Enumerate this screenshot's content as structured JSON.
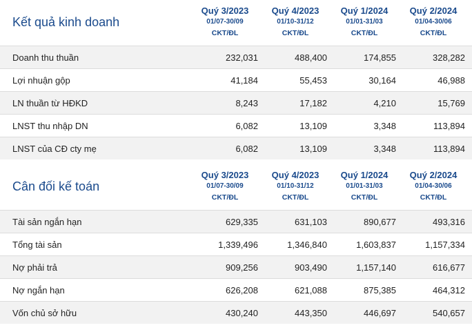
{
  "business_results": {
    "title": "Kết quả kinh doanh",
    "columns": [
      {
        "quarter": "Quý 3/2023",
        "dates": "01/07-30/09",
        "audit": "CKT/ĐL"
      },
      {
        "quarter": "Quý 4/2023",
        "dates": "01/10-31/12",
        "audit": "CKT/ĐL"
      },
      {
        "quarter": "Quý 1/2024",
        "dates": "01/01-31/03",
        "audit": "CKT/ĐL"
      },
      {
        "quarter": "Quý 2/2024",
        "dates": "01/04-30/06",
        "audit": "CKT/ĐL"
      }
    ],
    "rows": [
      {
        "label": "Doanh thu thuần",
        "values": [
          "232,031",
          "488,400",
          "174,855",
          "328,282"
        ]
      },
      {
        "label": "Lợi nhuận gộp",
        "values": [
          "41,184",
          "55,453",
          "30,164",
          "46,988"
        ]
      },
      {
        "label": "LN thuần từ HĐKD",
        "values": [
          "8,243",
          "17,182",
          "4,210",
          "15,769"
        ]
      },
      {
        "label": "LNST thu nhập DN",
        "values": [
          "6,082",
          "13,109",
          "3,348",
          "113,894"
        ]
      },
      {
        "label": "LNST của CĐ cty mẹ",
        "values": [
          "6,082",
          "13,109",
          "3,348",
          "113,894"
        ]
      }
    ]
  },
  "balance_sheet": {
    "title": "Cân đối kế toán",
    "columns": [
      {
        "quarter": "Quý 3/2023",
        "dates": "01/07-30/09",
        "audit": "CKT/ĐL"
      },
      {
        "quarter": "Quý 4/2023",
        "dates": "01/10-31/12",
        "audit": "CKT/ĐL"
      },
      {
        "quarter": "Quý 1/2024",
        "dates": "01/01-31/03",
        "audit": "CKT/ĐL"
      },
      {
        "quarter": "Quý 2/2024",
        "dates": "01/04-30/06",
        "audit": "CKT/ĐL"
      }
    ],
    "rows": [
      {
        "label": "Tài sản ngắn hạn",
        "values": [
          "629,335",
          "631,103",
          "890,677",
          "493,316"
        ]
      },
      {
        "label": "Tổng tài sản",
        "values": [
          "1,339,496",
          "1,346,840",
          "1,603,837",
          "1,157,334"
        ]
      },
      {
        "label": "Nợ phải trả",
        "values": [
          "909,256",
          "903,490",
          "1,157,140",
          "616,677"
        ]
      },
      {
        "label": "Nợ ngắn hạn",
        "values": [
          "626,208",
          "621,088",
          "875,385",
          "464,312"
        ]
      },
      {
        "label": "Vốn chủ sở hữu",
        "values": [
          "430,240",
          "443,350",
          "446,697",
          "540,657"
        ]
      }
    ]
  },
  "colors": {
    "header_blue": "#1a4a8c",
    "row_shade": "#f2f2f2"
  }
}
